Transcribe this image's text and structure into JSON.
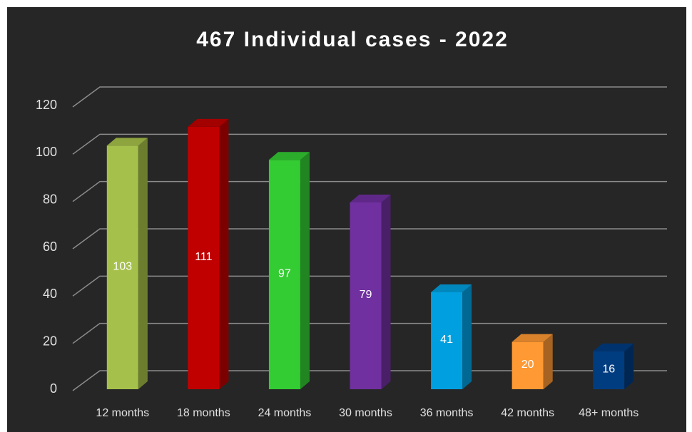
{
  "chart_data": {
    "type": "bar3d",
    "title": "467 Individual cases - 2022",
    "categories": [
      "12 months",
      "18 months",
      "24 months",
      "30 months",
      "36 months",
      "42 months",
      "48+ months"
    ],
    "values": [
      103,
      111,
      97,
      79,
      41,
      20,
      16
    ],
    "colors": [
      "#a6c14b",
      "#c00000",
      "#33cc33",
      "#7030a0",
      "#00a0e0",
      "#ff9933",
      "#003d80"
    ],
    "ylim": [
      0,
      120
    ],
    "yticks": [
      0,
      20,
      40,
      60,
      80,
      100,
      120
    ],
    "grid": true
  }
}
